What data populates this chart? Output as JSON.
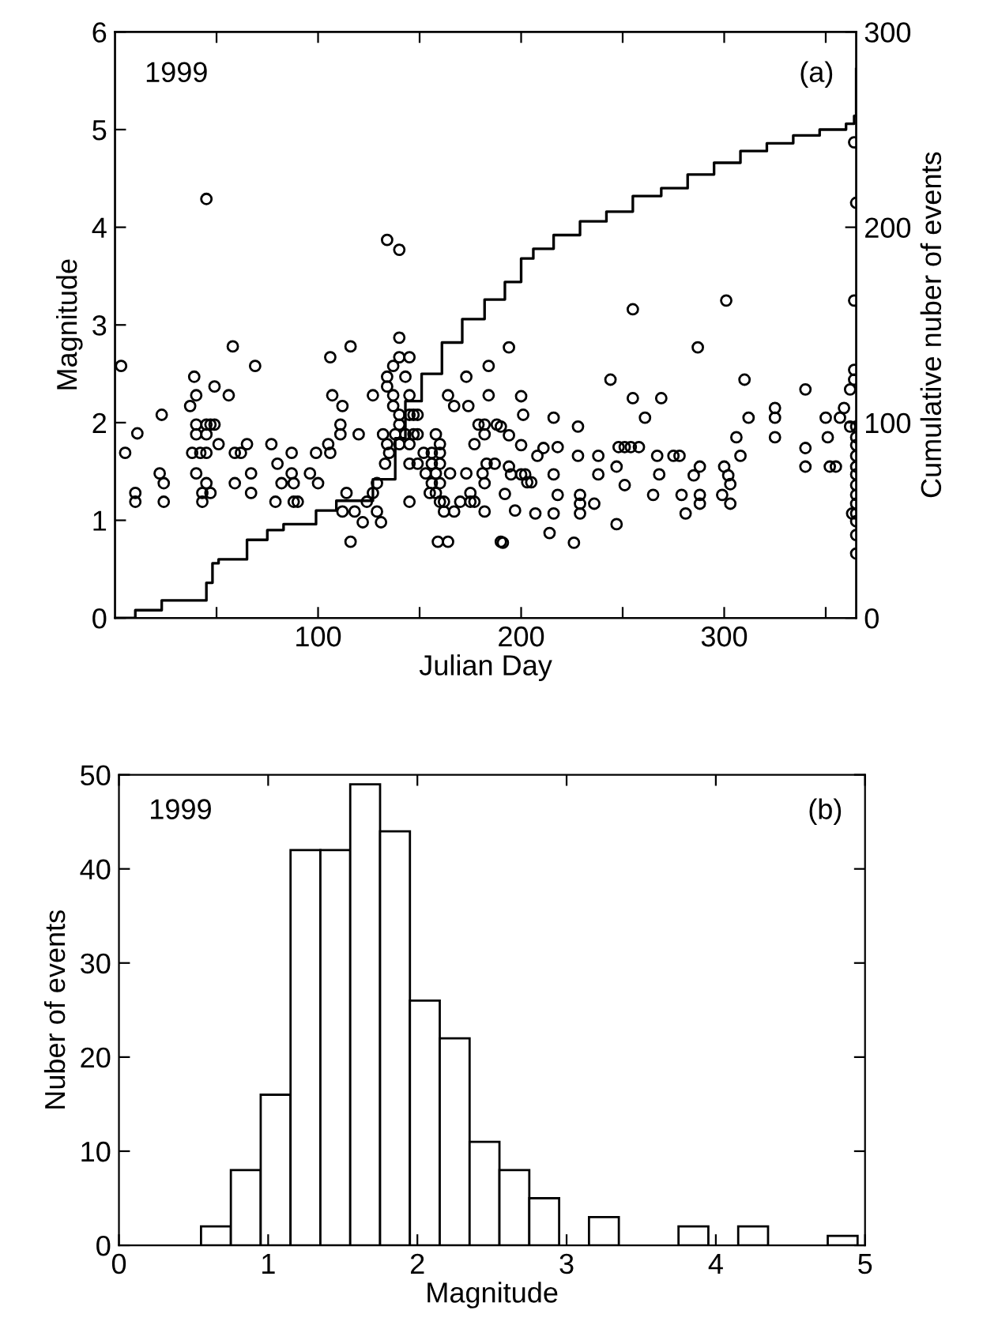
{
  "chart_data": [
    {
      "type": "scatter",
      "xlabel": "Julian Day",
      "ylabel": "Magnitude",
      "y2label": "Cumulative nuber of events",
      "annotations": [
        "1999",
        "(a)"
      ],
      "xlim": [
        0,
        365
      ],
      "xticks": [
        {
          "value": 50,
          "label": null
        },
        100,
        {
          "value": 150,
          "label": null
        },
        200,
        {
          "value": 250,
          "label": null
        },
        300,
        {
          "value": 350,
          "label": null
        }
      ],
      "ylim": [
        0,
        6
      ],
      "yticks": [
        0,
        1,
        2,
        3,
        4,
        5,
        6
      ],
      "y2lim": [
        0,
        300
      ],
      "y2ticks": [
        0,
        100,
        200,
        300
      ],
      "grid": false,
      "series": [
        {
          "type": "scatter",
          "color": "#000000",
          "marker": "circle",
          "x": [
            3,
            5,
            11,
            10,
            10,
            23,
            22,
            24,
            24,
            39,
            40,
            37,
            49,
            56,
            58,
            69,
            45,
            40,
            45,
            47,
            49,
            40,
            45,
            38,
            42,
            45,
            40,
            45,
            43,
            47,
            43,
            51,
            59,
            62,
            65,
            59,
            67,
            67,
            77,
            80,
            79,
            87,
            87,
            82,
            88,
            88,
            90,
            96,
            100,
            99,
            105,
            106,
            106,
            107,
            112,
            111,
            111,
            116,
            114,
            112,
            118,
            122,
            116,
            127,
            120,
            124,
            127,
            129,
            129,
            131,
            134,
            140,
            140,
            134,
            137,
            140,
            145,
            134,
            137,
            143,
            145,
            137,
            140,
            132,
            134,
            140,
            145,
            147,
            138,
            143,
            147,
            149,
            140,
            145,
            133,
            135,
            145,
            149,
            145,
            152,
            156,
            160,
            153,
            158,
            156,
            160,
            149,
            158,
            160,
            155,
            158,
            156,
            160,
            160,
            162,
            164,
            167,
            174,
            173,
            165,
            162,
            167,
            170,
            175,
            177,
            173,
            175,
            159,
            164,
            179,
            182,
            182,
            177,
            183,
            181,
            184,
            184,
            188,
            182,
            182,
            190,
            187,
            190,
            194,
            194,
            192,
            197,
            200,
            201,
            200,
            194,
            200,
            202,
            203,
            205,
            191,
            195,
            208,
            211,
            207,
            216,
            218,
            216,
            218,
            216,
            214,
            228,
            228,
            229,
            229,
            229,
            236,
            226,
            238,
            238,
            244,
            247,
            247,
            248,
            251,
            254,
            258,
            251,
            255,
            255,
            261,
            267,
            269,
            268,
            265,
            275,
            278,
            279,
            281,
            287,
            288,
            285,
            288,
            288,
            300,
            301,
            302,
            303,
            299,
            303,
            306,
            308,
            310,
            312,
            325,
            325,
            325,
            340,
            340,
            340,
            350,
            351,
            352,
            355,
            357,
            359,
            362,
            364,
            364,
            365,
            365,
            365,
            365,
            365,
            365,
            365,
            365,
            365,
            365,
            365,
            365,
            365,
            364,
            365,
            364,
            362,
            363
          ],
          "values": [
            2.58,
            1.69,
            1.89,
            1.28,
            1.19,
            2.08,
            1.48,
            1.38,
            1.19,
            2.47,
            2.28,
            2.17,
            2.37,
            2.28,
            2.78,
            2.58,
            4.29,
            1.98,
            1.98,
            1.98,
            1.98,
            1.88,
            1.88,
            1.69,
            1.69,
            1.69,
            1.48,
            1.38,
            1.28,
            1.28,
            1.19,
            1.78,
            1.69,
            1.69,
            1.78,
            1.38,
            1.48,
            1.28,
            1.78,
            1.58,
            1.19,
            1.69,
            1.48,
            1.38,
            1.38,
            1.19,
            1.19,
            1.48,
            1.38,
            1.69,
            1.78,
            1.69,
            2.67,
            2.28,
            2.17,
            1.98,
            1.88,
            2.78,
            1.28,
            1.09,
            1.09,
            0.98,
            0.78,
            2.28,
            1.88,
            1.19,
            1.28,
            1.38,
            1.09,
            0.98,
            3.87,
            3.77,
            2.87,
            2.47,
            2.58,
            2.67,
            2.67,
            2.37,
            2.28,
            2.47,
            2.28,
            2.17,
            2.08,
            1.88,
            1.78,
            1.98,
            2.08,
            2.08,
            1.88,
            1.88,
            1.88,
            1.88,
            1.78,
            1.78,
            1.58,
            1.69,
            1.58,
            1.58,
            1.19,
            1.69,
            1.69,
            1.69,
            1.48,
            1.48,
            1.58,
            1.58,
            2.08,
            1.88,
            1.78,
            1.28,
            1.28,
            1.38,
            1.38,
            1.19,
            1.09,
            2.28,
            2.17,
            2.17,
            2.47,
            1.48,
            1.19,
            1.09,
            1.19,
            1.19,
            1.19,
            1.48,
            1.28,
            0.78,
            0.78,
            1.98,
            1.98,
            1.88,
            1.78,
            1.58,
            1.48,
            2.28,
            2.58,
            1.98,
            1.38,
            1.09,
            0.78,
            1.58,
            1.96,
            1.87,
            2.77,
            1.27,
            1.1,
            2.27,
            2.08,
            1.77,
            1.55,
            1.47,
            1.47,
            1.39,
            1.39,
            0.77,
            1.47,
            1.66,
            1.74,
            1.07,
            2.05,
            1.75,
            1.47,
            1.26,
            1.07,
            0.87,
            1.96,
            1.66,
            1.26,
            1.17,
            1.07,
            1.17,
            0.77,
            1.66,
            1.47,
            2.44,
            1.55,
            0.96,
            1.75,
            1.75,
            1.75,
            1.75,
            1.36,
            2.25,
            3.16,
            2.05,
            1.66,
            2.25,
            1.47,
            1.26,
            1.66,
            1.66,
            1.26,
            1.07,
            2.77,
            1.55,
            1.46,
            1.26,
            1.17,
            1.55,
            3.25,
            1.46,
            1.37,
            1.26,
            1.17,
            1.85,
            1.66,
            2.44,
            2.05,
            2.15,
            2.05,
            1.85,
            2.34,
            1.74,
            1.55,
            2.05,
            1.85,
            1.55,
            1.55,
            2.05,
            2.15,
            2.34,
            2.44,
            2.54,
            1.96,
            1.85,
            1.77,
            1.66,
            1.55,
            1.47,
            1.36,
            1.26,
            1.17,
            1.07,
            0.99,
            0.85,
            0.66,
            3.25,
            4.25,
            4.87,
            1.96,
            1.07
          ]
        },
        {
          "type": "step",
          "axis": "y2",
          "color": "#000000",
          "marker": "none",
          "line_style": "solid",
          "x": [
            0,
            10,
            21,
            23,
            36,
            45,
            48,
            51,
            65,
            75,
            83,
            99,
            109,
            127,
            138,
            143,
            151,
            161,
            171,
            182,
            192,
            200,
            206,
            216,
            229,
            242,
            255,
            269,
            282,
            295,
            308,
            321,
            334,
            347,
            360,
            364,
            365
          ],
          "values": [
            0,
            4,
            4,
            9,
            9,
            18,
            28,
            30,
            40,
            45,
            48,
            55,
            60,
            71,
            92,
            111,
            125,
            141,
            153,
            163,
            172,
            184,
            189,
            196,
            203,
            208,
            216,
            220,
            227,
            233,
            239,
            243,
            247,
            250,
            253,
            257,
            281
          ]
        }
      ]
    },
    {
      "type": "histogram",
      "xlabel": "Magnitude",
      "ylabel": "Nuber of events",
      "annotations": [
        "1999",
        "(b)"
      ],
      "xlim": [
        0,
        5
      ],
      "xticks": [
        0,
        1,
        2,
        3,
        4,
        5
      ],
      "ylim": [
        0,
        50
      ],
      "yticks": [
        0,
        10,
        20,
        30,
        40,
        50
      ],
      "grid": false,
      "color": "#ffffff",
      "bins": [
        0.55,
        0.75,
        0.95,
        1.15,
        1.35,
        1.55,
        1.75,
        1.95,
        2.15,
        2.35,
        2.55,
        2.75,
        2.95,
        3.15,
        3.35,
        3.55,
        3.75,
        3.95,
        4.15,
        4.35,
        4.55,
        4.75,
        4.95
      ],
      "values": [
        2,
        8,
        16,
        42,
        42,
        49,
        44,
        26,
        22,
        11,
        8,
        5,
        0,
        3,
        0,
        0,
        2,
        0,
        2,
        0,
        0,
        1
      ]
    }
  ]
}
